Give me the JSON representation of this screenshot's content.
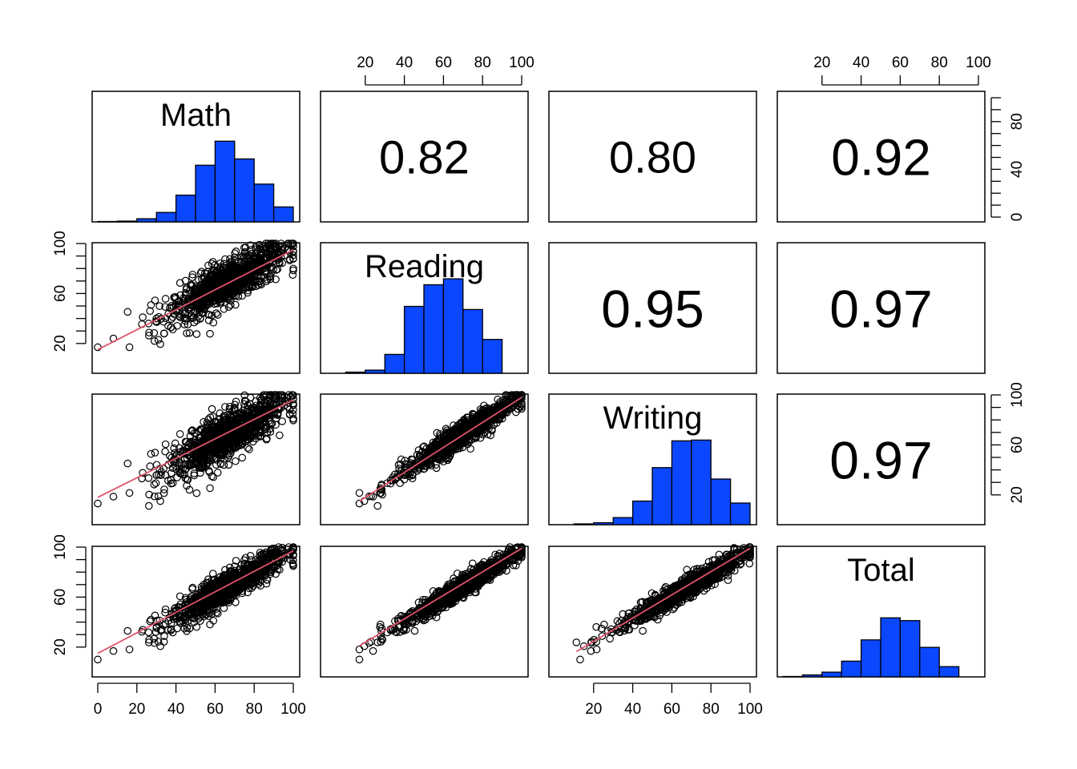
{
  "colors": {
    "bar_fill": "#0a47ff",
    "fit_line": "#df536b",
    "points": "#000000"
  },
  "chart_data": {
    "type": "scatter-matrix",
    "variables": [
      "Math",
      "Reading",
      "Writing",
      "Total"
    ],
    "axis_range": [
      0,
      100
    ],
    "ticks": {
      "Math": [
        0,
        20,
        40,
        60,
        80,
        100
      ],
      "Reading": [
        20,
        40,
        60,
        80,
        100
      ],
      "Writing": [
        20,
        40,
        60,
        80,
        100
      ],
      "Total": [
        20,
        40,
        60,
        80,
        100
      ]
    },
    "correlations": [
      {
        "row": "Math",
        "col": "Reading",
        "value": "0.82",
        "size": 58
      },
      {
        "row": "Math",
        "col": "Writing",
        "value": "0.80",
        "size": 56
      },
      {
        "row": "Math",
        "col": "Total",
        "value": "0.92",
        "size": 64
      },
      {
        "row": "Reading",
        "col": "Writing",
        "value": "0.95",
        "size": 66
      },
      {
        "row": "Reading",
        "col": "Total",
        "value": "0.97",
        "size": 66
      },
      {
        "row": "Writing",
        "col": "Total",
        "value": "0.97",
        "size": 66
      }
    ],
    "histograms": {
      "Math": {
        "bins": [
          [
            0,
            10
          ],
          [
            10,
            20
          ],
          [
            20,
            30
          ],
          [
            30,
            40
          ],
          [
            40,
            50
          ],
          [
            50,
            60
          ],
          [
            60,
            70
          ],
          [
            70,
            80
          ],
          [
            80,
            90
          ],
          [
            90,
            100
          ]
        ],
        "counts": [
          1,
          2,
          8,
          24,
          68,
          144,
          205,
          160,
          96,
          38
        ]
      },
      "Reading": {
        "bins": [
          [
            10,
            20
          ],
          [
            20,
            30
          ],
          [
            30,
            40
          ],
          [
            40,
            50
          ],
          [
            50,
            60
          ],
          [
            60,
            70
          ],
          [
            70,
            80
          ],
          [
            80,
            90
          ],
          [
            90,
            100
          ]
        ],
        "counts": [
          3,
          8,
          48,
          170,
          225,
          240,
          162,
          86,
          0
        ]
      },
      "Writing": {
        "bins": [
          [
            10,
            20
          ],
          [
            20,
            30
          ],
          [
            30,
            40
          ],
          [
            40,
            50
          ],
          [
            50,
            60
          ],
          [
            60,
            70
          ],
          [
            70,
            80
          ],
          [
            80,
            90
          ],
          [
            90,
            100
          ]
        ],
        "counts": [
          2,
          5,
          18,
          60,
          145,
          213,
          215,
          116,
          55
        ]
      },
      "Total": {
        "bins": [
          [
            0,
            10
          ],
          [
            10,
            20
          ],
          [
            20,
            30
          ],
          [
            30,
            40
          ],
          [
            40,
            50
          ],
          [
            50,
            60
          ],
          [
            60,
            70
          ],
          [
            70,
            80
          ],
          [
            80,
            90
          ],
          [
            90,
            100
          ]
        ],
        "counts": [
          1,
          5,
          12,
          40,
          94,
          150,
          143,
          75,
          26,
          0
        ]
      }
    },
    "histogram_ylim": [
      0,
      100
    ],
    "histogram_ticks": [
      0,
      20,
      40,
      60,
      80,
      100
    ],
    "n_points": 1000,
    "outliers": [
      [
        0,
        17
      ],
      [
        8,
        24
      ],
      [
        26,
        36
      ],
      [
        29,
        22
      ],
      [
        31,
        23
      ],
      [
        34,
        28
      ],
      [
        23,
        41
      ],
      [
        30,
        40
      ]
    ],
    "fit": {
      "Reading~Math": [
        15,
        0.8
      ],
      "Writing~Math": [
        18,
        0.78
      ],
      "Total~Math": [
        15,
        0.82
      ],
      "Writing~Reading": [
        -2,
        1.0
      ],
      "Total~Reading": [
        5,
        0.94
      ],
      "Total~Writing": [
        6,
        0.93
      ]
    }
  }
}
